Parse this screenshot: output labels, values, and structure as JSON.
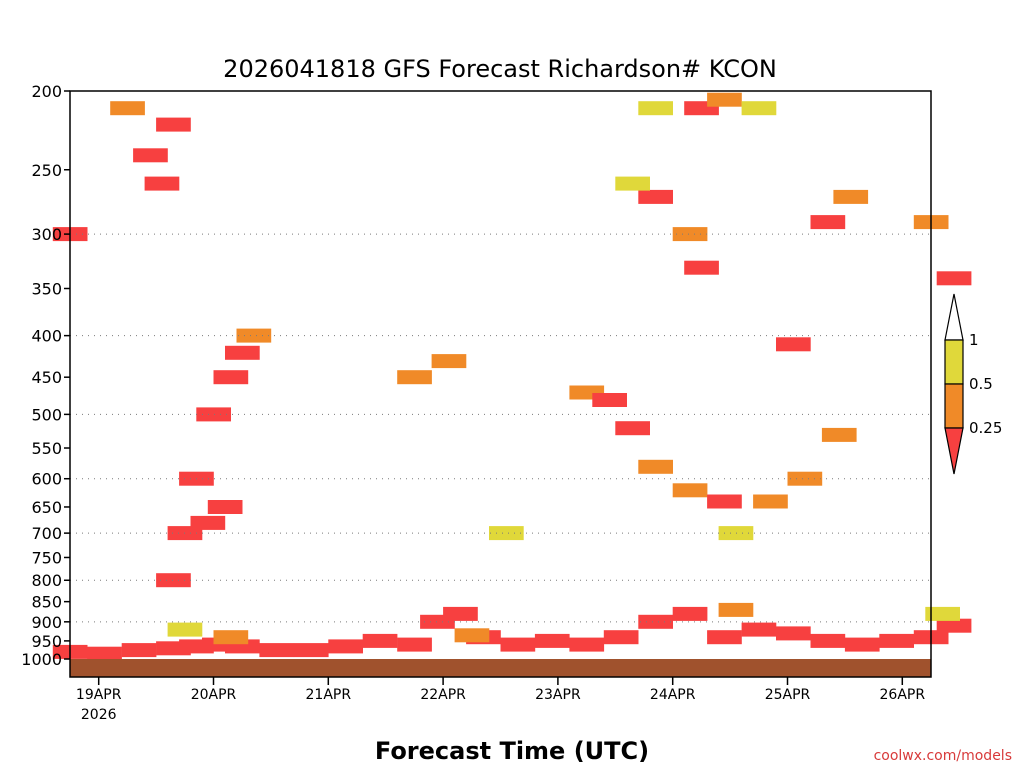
{
  "chart_data": {
    "type": "heatmap",
    "title": "2026041818 GFS Forecast Richardson# KCON",
    "xlabel": "Forecast Time (UTC)",
    "ylabel": "",
    "credit": "coolwx.com/models",
    "y_axis": {
      "scale": "log-pressure",
      "range_hpa": [
        1000,
        200
      ],
      "ticks": [
        "200",
        "250",
        "300",
        "350",
        "400",
        "450",
        "500",
        "550",
        "600",
        "650",
        "700",
        "750",
        "800",
        "850",
        "900",
        "950",
        "1000"
      ],
      "gridlines_hpa": [
        300,
        400,
        500,
        600,
        700,
        800,
        900
      ]
    },
    "x_axis": {
      "range": [
        "2026-04-18 18Z",
        "2026-04-26 06Z"
      ],
      "ticks": [
        {
          "label": "19APR",
          "sub": "2026",
          "date": "2026-04-19 00Z"
        },
        {
          "label": "20APR",
          "sub": "",
          "date": "2026-04-20 00Z"
        },
        {
          "label": "21APR",
          "sub": "",
          "date": "2026-04-21 00Z"
        },
        {
          "label": "22APR",
          "sub": "",
          "date": "2026-04-22 00Z"
        },
        {
          "label": "23APR",
          "sub": "",
          "date": "2026-04-23 00Z"
        },
        {
          "label": "24APR",
          "sub": "",
          "date": "2026-04-24 00Z"
        },
        {
          "label": "25APR",
          "sub": "",
          "date": "2026-04-25 00Z"
        },
        {
          "label": "26APR",
          "sub": "",
          "date": "2026-04-26 00Z"
        }
      ]
    },
    "legend": {
      "placement": "right",
      "levels": [
        "1",
        "0.5",
        "0.25"
      ],
      "colors": {
        "gt_1": "#ffffff",
        "r_0_5_to_1": "#e0d83a",
        "r_0_25_to_0_5": "#f08a28",
        "lt_0_25": "#f74040"
      }
    },
    "colors": {
      "ground": "#a0522d",
      "frame": "#000000"
    },
    "series": [
      {
        "name": "low-level",
        "note": "values are approximate Richardson number shading bands (day, pressure_hPa, class)",
        "cells": [
          [
            0.1,
            980,
            "lt_0_25"
          ],
          [
            0.4,
            985,
            "lt_0_25"
          ],
          [
            0.7,
            975,
            "lt_0_25"
          ],
          [
            1.0,
            970,
            "lt_0_25"
          ],
          [
            1.2,
            965,
            "lt_0_25"
          ],
          [
            1.4,
            960,
            "lt_0_25"
          ],
          [
            1.6,
            965,
            "lt_0_25"
          ],
          [
            1.9,
            975,
            "lt_0_25"
          ],
          [
            2.2,
            975,
            "lt_0_25"
          ],
          [
            2.5,
            965,
            "lt_0_25"
          ],
          [
            2.8,
            950,
            "lt_0_25"
          ],
          [
            3.1,
            960,
            "lt_0_25"
          ],
          [
            3.3,
            900,
            "lt_0_25"
          ],
          [
            3.5,
            880,
            "lt_0_25"
          ],
          [
            3.7,
            940,
            "lt_0_25"
          ],
          [
            4.0,
            960,
            "lt_0_25"
          ],
          [
            4.3,
            950,
            "lt_0_25"
          ],
          [
            4.6,
            960,
            "lt_0_25"
          ],
          [
            4.9,
            940,
            "lt_0_25"
          ],
          [
            5.2,
            900,
            "lt_0_25"
          ],
          [
            5.5,
            880,
            "lt_0_25"
          ],
          [
            5.8,
            940,
            "lt_0_25"
          ],
          [
            6.1,
            920,
            "lt_0_25"
          ],
          [
            6.4,
            930,
            "lt_0_25"
          ],
          [
            6.7,
            950,
            "lt_0_25"
          ],
          [
            7.0,
            960,
            "lt_0_25"
          ],
          [
            7.3,
            950,
            "lt_0_25"
          ],
          [
            7.6,
            940,
            "lt_0_25"
          ],
          [
            7.8,
            910,
            "lt_0_25"
          ],
          [
            1.1,
            920,
            "r_0_5_to_1"
          ],
          [
            1.5,
            940,
            "r_0_25_to_0_5"
          ],
          [
            3.6,
            935,
            "r_0_25_to_0_5"
          ],
          [
            5.9,
            870,
            "r_0_25_to_0_5"
          ],
          [
            7.7,
            880,
            "r_0_5_to_1"
          ]
        ]
      },
      {
        "name": "diagonal-features",
        "note": "approximate",
        "cells": [
          [
            1.0,
            800,
            "lt_0_25"
          ],
          [
            1.1,
            700,
            "lt_0_25"
          ],
          [
            1.2,
            600,
            "lt_0_25"
          ],
          [
            1.35,
            500,
            "lt_0_25"
          ],
          [
            1.5,
            450,
            "lt_0_25"
          ],
          [
            1.6,
            420,
            "lt_0_25"
          ],
          [
            1.7,
            400,
            "r_0_25_to_0_5"
          ],
          [
            1.3,
            680,
            "lt_0_25"
          ],
          [
            1.45,
            650,
            "lt_0_25"
          ],
          [
            4.6,
            470,
            "r_0_25_to_0_5"
          ],
          [
            4.8,
            480,
            "lt_0_25"
          ],
          [
            5.0,
            520,
            "lt_0_25"
          ],
          [
            5.2,
            580,
            "r_0_25_to_0_5"
          ],
          [
            5.5,
            620,
            "r_0_25_to_0_5"
          ],
          [
            5.8,
            640,
            "lt_0_25"
          ],
          [
            6.2,
            640,
            "r_0_25_to_0_5"
          ],
          [
            6.5,
            600,
            "r_0_25_to_0_5"
          ],
          [
            6.8,
            530,
            "r_0_25_to_0_5"
          ],
          [
            5.9,
            700,
            "r_0_5_to_1"
          ],
          [
            3.9,
            700,
            "r_0_5_to_1"
          ],
          [
            3.1,
            450,
            "r_0_25_to_0_5"
          ],
          [
            3.4,
            430,
            "r_0_25_to_0_5"
          ]
        ]
      },
      {
        "name": "upper-level",
        "note": "approximate",
        "cells": [
          [
            0.8,
            240,
            "lt_0_25"
          ],
          [
            0.9,
            260,
            "lt_0_25"
          ],
          [
            1.0,
            220,
            "lt_0_25"
          ],
          [
            0.6,
            210,
            "r_0_25_to_0_5"
          ],
          [
            0.1,
            300,
            "lt_0_25"
          ],
          [
            5.6,
            210,
            "lt_0_25"
          ],
          [
            5.8,
            205,
            "r_0_25_to_0_5"
          ],
          [
            5.2,
            270,
            "lt_0_25"
          ],
          [
            5.5,
            300,
            "r_0_25_to_0_5"
          ],
          [
            5.6,
            330,
            "lt_0_25"
          ],
          [
            5.0,
            260,
            "r_0_5_to_1"
          ],
          [
            5.2,
            210,
            "r_0_5_to_1"
          ],
          [
            6.7,
            290,
            "lt_0_25"
          ],
          [
            6.9,
            270,
            "r_0_25_to_0_5"
          ],
          [
            7.6,
            290,
            "r_0_25_to_0_5"
          ],
          [
            7.8,
            340,
            "lt_0_25"
          ],
          [
            6.4,
            410,
            "lt_0_25"
          ],
          [
            6.1,
            210,
            "r_0_5_to_1"
          ]
        ]
      }
    ]
  }
}
